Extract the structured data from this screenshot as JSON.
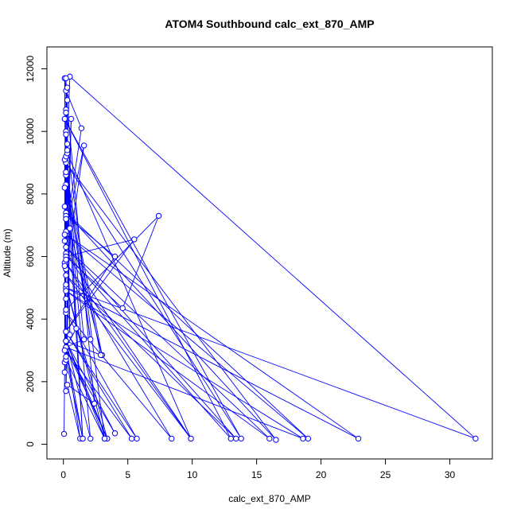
{
  "chart_data": {
    "type": "line",
    "title": "ATOM4 Southbound calc_ext_870_AMP",
    "xlabel": "calc_ext_870_AMP",
    "ylabel": "Altitude (m)",
    "xlim": [
      -1.28,
      33.3
    ],
    "ylim": [
      -470,
      12700
    ],
    "x_ticks": [
      0,
      5,
      10,
      15,
      20,
      25,
      30
    ],
    "y_ticks": [
      0,
      2000,
      4000,
      6000,
      8000,
      10000,
      12000
    ],
    "grid": false,
    "legend": "none",
    "series_color": "#0000FF",
    "marker": "open-circle",
    "series": [
      {
        "x": [
          0.05,
          0.1,
          0.2,
          0.3,
          0.5,
          32.0,
          0.2,
          22.9,
          0.2,
          19.0,
          0.2,
          16.5,
          0.2,
          13.8,
          0.1,
          13.0,
          0.2,
          9.9,
          0.2,
          8.4,
          0.2,
          5.7,
          0.2,
          5.3,
          0.2,
          4.0,
          0.2,
          3.4,
          0.2,
          3.2,
          0.2,
          1.5,
          0.2,
          1.3,
          0.3,
          2.4,
          0.1,
          0.2,
          7.4,
          4.6,
          0.2,
          5.5,
          0.2,
          4.0,
          0.2,
          3.0,
          0.2,
          2.1,
          0.2,
          1.6,
          0.2,
          1.0,
          0.2,
          0.5,
          0.2,
          0.2,
          0.3,
          0.1,
          0.1,
          0.2,
          1.4,
          0.2,
          1.6,
          0.2,
          0.6,
          0.2,
          0.5,
          0.2,
          0.1,
          0.2,
          0.2,
          0.1,
          0.1,
          0.3,
          9.9,
          0.2,
          13.4,
          0.2,
          16.0,
          0.2,
          18.6,
          0.2,
          3.4,
          0.2,
          3.2,
          0.2,
          1.5,
          0.2,
          2.1,
          0.2,
          2.9,
          0.2,
          0.3,
          0.1,
          0.2,
          0.1,
          0.2,
          0.1,
          0.2,
          0.3,
          0.2,
          0.1
        ],
        "y": [
          330,
          2620,
          5600,
          9600,
          11750,
          180,
          5000,
          180,
          6700,
          180,
          7400,
          140,
          9000,
          180,
          10400,
          180,
          6100,
          180,
          5800,
          180,
          4200,
          180,
          3600,
          180,
          3000,
          350,
          3300,
          180,
          3300,
          180,
          2700,
          180,
          3100,
          180,
          1900,
          1300,
          11700,
          4300,
          7300,
          4350,
          6000,
          6550,
          3600,
          6000,
          7300,
          2850,
          8600,
          3350,
          9000,
          3350,
          3100,
          3700,
          10000,
          3500,
          11700,
          10700,
          11000,
          2300,
          5800,
          11300,
          10100,
          6800,
          9550,
          5600,
          10400,
          2800,
          6900,
          1700,
          9100,
          9200,
          8700,
          7600,
          6700,
          9300,
          180,
          5400,
          180,
          6300,
          180,
          4900,
          180,
          3100,
          180,
          5100,
          180,
          9900,
          180,
          8700,
          180,
          3300,
          2850,
          8300,
          9400,
          5700,
          4650,
          3000,
          7200,
          8200,
          5900,
          11400,
          10600,
          6500
        ]
      }
    ]
  }
}
